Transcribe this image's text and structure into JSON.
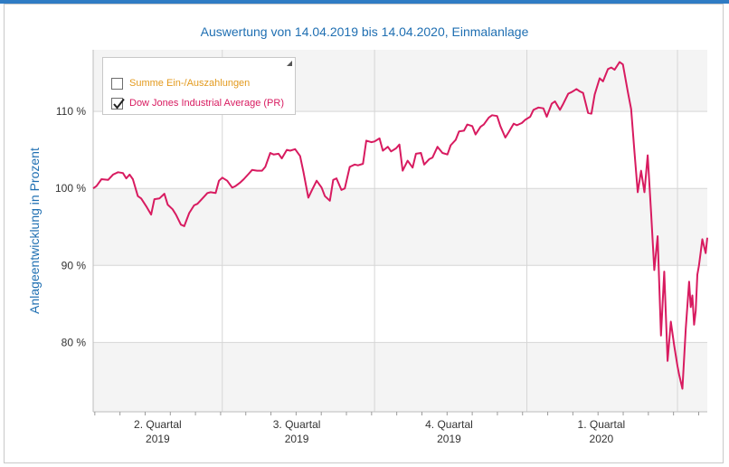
{
  "title": "Auswertung von 14.04.2019 bis 14.04.2020, Einmalanlage",
  "legend": {
    "items": [
      {
        "label": "Summe Ein-/Auszahlungen",
        "checked": false,
        "color": "#e39a1e"
      },
      {
        "label": "Dow Jones Industrial Average (PR)",
        "checked": true,
        "color": "#d81b60"
      }
    ]
  },
  "colors": {
    "title": "#1f6fb2",
    "series": "#d81b60",
    "band": "#f4f4f4",
    "grid": "#d6d6d6"
  },
  "chart_data": {
    "type": "line",
    "title": "Auswertung von 14.04.2019 bis 14.04.2020, Einmalanlage",
    "xlabel": "",
    "ylabel": "Anlageentwicklung  in Prozent",
    "y_unit": "%",
    "ylim": [
      71,
      118
    ],
    "yticks": [
      80,
      90,
      100,
      110
    ],
    "ytick_labels": [
      "80 %",
      "90 %",
      "100 %",
      "110 %"
    ],
    "xlim": [
      "2019-04-14",
      "2020-04-14"
    ],
    "x_quarter_boundaries": [
      "2019-07-01",
      "2019-10-01",
      "2020-01-01"
    ],
    "xticks": [
      {
        "line1": "2. Quartal",
        "line2": "2019",
        "center": "2019-05-23"
      },
      {
        "line1": "3. Quartal",
        "line2": "2019",
        "center": "2019-08-15"
      },
      {
        "line1": "4. Quartal",
        "line2": "2019",
        "center": "2019-11-15"
      },
      {
        "line1": "1. Quartal",
        "line2": "2020",
        "center": "2020-02-15"
      }
    ],
    "grid": true,
    "legend_position": "top-left",
    "series": [
      {
        "name": "Dow Jones Industrial Average (PR)",
        "color": "#d81b60",
        "points": [
          [
            "2019-04-14",
            100.0
          ],
          [
            "2019-04-16",
            100.3
          ],
          [
            "2019-04-19",
            101.2
          ],
          [
            "2019-04-23",
            101.1
          ],
          [
            "2019-04-26",
            101.8
          ],
          [
            "2019-04-29",
            102.1
          ],
          [
            "2019-05-02",
            102.0
          ],
          [
            "2019-05-04",
            101.3
          ],
          [
            "2019-05-06",
            101.8
          ],
          [
            "2019-05-08",
            101.2
          ],
          [
            "2019-05-11",
            99.0
          ],
          [
            "2019-05-13",
            98.7
          ],
          [
            "2019-05-16",
            97.7
          ],
          [
            "2019-05-19",
            96.6
          ],
          [
            "2019-05-21",
            98.6
          ],
          [
            "2019-05-24",
            98.7
          ],
          [
            "2019-05-27",
            99.3
          ],
          [
            "2019-05-29",
            97.9
          ],
          [
            "2019-06-01",
            97.3
          ],
          [
            "2019-06-03",
            96.6
          ],
          [
            "2019-06-06",
            95.3
          ],
          [
            "2019-06-08",
            95.1
          ],
          [
            "2019-06-11",
            96.8
          ],
          [
            "2019-06-14",
            97.8
          ],
          [
            "2019-06-16",
            98.0
          ],
          [
            "2019-06-19",
            98.7
          ],
          [
            "2019-06-22",
            99.4
          ],
          [
            "2019-06-24",
            99.5
          ],
          [
            "2019-06-27",
            99.4
          ],
          [
            "2019-06-29",
            101.0
          ],
          [
            "2019-07-01",
            101.4
          ],
          [
            "2019-07-04",
            101.0
          ],
          [
            "2019-07-07",
            100.1
          ],
          [
            "2019-07-09",
            100.3
          ],
          [
            "2019-07-12",
            100.8
          ],
          [
            "2019-07-14",
            101.2
          ],
          [
            "2019-07-17",
            101.9
          ],
          [
            "2019-07-19",
            102.4
          ],
          [
            "2019-07-22",
            102.3
          ],
          [
            "2019-07-25",
            102.3
          ],
          [
            "2019-07-27",
            102.8
          ],
          [
            "2019-07-30",
            104.6
          ],
          [
            "2019-08-01",
            104.4
          ],
          [
            "2019-08-04",
            104.5
          ],
          [
            "2019-08-06",
            103.9
          ],
          [
            "2019-08-09",
            105.0
          ],
          [
            "2019-08-11",
            104.9
          ],
          [
            "2019-08-14",
            105.1
          ],
          [
            "2019-08-17",
            104.2
          ],
          [
            "2019-08-19",
            102.2
          ],
          [
            "2019-08-22",
            98.8
          ],
          [
            "2019-08-24",
            99.7
          ],
          [
            "2019-08-27",
            101.0
          ],
          [
            "2019-08-30",
            100.1
          ],
          [
            "2019-09-01",
            99.0
          ],
          [
            "2019-09-04",
            98.4
          ],
          [
            "2019-09-06",
            101.1
          ],
          [
            "2019-09-08",
            101.3
          ],
          [
            "2019-09-11",
            99.8
          ],
          [
            "2019-09-13",
            100.0
          ],
          [
            "2019-09-16",
            102.8
          ],
          [
            "2019-09-19",
            103.1
          ],
          [
            "2019-09-21",
            103.0
          ],
          [
            "2019-09-24",
            103.2
          ],
          [
            "2019-09-26",
            106.2
          ],
          [
            "2019-09-29",
            106.0
          ],
          [
            "2019-10-01",
            106.1
          ],
          [
            "2019-10-04",
            106.5
          ],
          [
            "2019-10-06",
            104.9
          ],
          [
            "2019-10-09",
            105.4
          ],
          [
            "2019-10-11",
            104.8
          ],
          [
            "2019-10-14",
            105.2
          ],
          [
            "2019-10-16",
            105.7
          ],
          [
            "2019-10-18",
            102.3
          ],
          [
            "2019-10-21",
            103.6
          ],
          [
            "2019-10-24",
            102.7
          ],
          [
            "2019-10-26",
            104.5
          ],
          [
            "2019-10-29",
            104.6
          ],
          [
            "2019-10-31",
            103.1
          ],
          [
            "2019-11-03",
            103.8
          ],
          [
            "2019-11-05",
            104.0
          ],
          [
            "2019-11-08",
            105.4
          ],
          [
            "2019-11-11",
            104.6
          ],
          [
            "2019-11-14",
            104.4
          ],
          [
            "2019-11-16",
            105.6
          ],
          [
            "2019-11-19",
            106.3
          ],
          [
            "2019-11-21",
            107.4
          ],
          [
            "2019-11-24",
            107.5
          ],
          [
            "2019-11-26",
            108.3
          ],
          [
            "2019-11-29",
            108.1
          ],
          [
            "2019-12-01",
            107.0
          ],
          [
            "2019-12-04",
            108.0
          ],
          [
            "2019-12-06",
            108.3
          ],
          [
            "2019-12-09",
            109.2
          ],
          [
            "2019-12-11",
            109.5
          ],
          [
            "2019-12-14",
            109.4
          ],
          [
            "2019-12-16",
            108.1
          ],
          [
            "2019-12-19",
            106.6
          ],
          [
            "2019-12-21",
            107.3
          ],
          [
            "2019-12-24",
            108.4
          ],
          [
            "2019-12-26",
            108.2
          ],
          [
            "2019-12-29",
            108.5
          ],
          [
            "2019-12-31",
            108.9
          ],
          [
            "2020-01-03",
            109.3
          ],
          [
            "2020-01-05",
            110.2
          ],
          [
            "2020-01-08",
            110.5
          ],
          [
            "2020-01-11",
            110.4
          ],
          [
            "2020-01-13",
            109.3
          ],
          [
            "2020-01-16",
            111.0
          ],
          [
            "2020-01-18",
            111.3
          ],
          [
            "2020-01-21",
            110.2
          ],
          [
            "2020-01-23",
            111.0
          ],
          [
            "2020-01-26",
            112.3
          ],
          [
            "2020-01-28",
            112.5
          ],
          [
            "2020-01-31",
            112.9
          ],
          [
            "2020-02-02",
            112.6
          ],
          [
            "2020-02-04",
            112.4
          ],
          [
            "2020-02-07",
            109.8
          ],
          [
            "2020-02-09",
            109.7
          ],
          [
            "2020-02-11",
            112.2
          ],
          [
            "2020-02-14",
            114.3
          ],
          [
            "2020-02-16",
            113.9
          ],
          [
            "2020-02-19",
            115.5
          ],
          [
            "2020-02-21",
            115.7
          ],
          [
            "2020-02-23",
            115.4
          ],
          [
            "2020-02-26",
            116.4
          ],
          [
            "2020-02-28",
            116.1
          ],
          [
            "2020-03-02",
            112.5
          ],
          [
            "2020-03-04",
            110.3
          ],
          [
            "2020-03-06",
            104.7
          ],
          [
            "2020-03-08",
            99.5
          ],
          [
            "2020-03-10",
            102.3
          ],
          [
            "2020-03-12",
            99.5
          ],
          [
            "2020-03-14",
            104.3
          ],
          [
            "2020-03-16",
            97.0
          ],
          [
            "2020-03-18",
            89.4
          ],
          [
            "2020-03-20",
            93.8
          ],
          [
            "2020-03-22",
            80.9
          ],
          [
            "2020-03-24",
            89.2
          ],
          [
            "2020-03-26",
            77.6
          ],
          [
            "2020-03-28",
            82.7
          ],
          [
            "2020-03-30",
            79.6
          ],
          [
            "2020-04-01",
            76.9
          ],
          [
            "2020-04-02",
            75.8
          ],
          [
            "2020-04-04",
            74.0
          ],
          [
            "2020-04-06",
            81.8
          ],
          [
            "2020-04-08",
            87.9
          ],
          [
            "2020-04-09",
            84.6
          ],
          [
            "2020-04-10",
            86.1
          ],
          [
            "2020-04-11",
            82.3
          ],
          [
            "2020-04-12",
            84.1
          ],
          [
            "2020-04-13",
            88.8
          ],
          [
            "2020-04-14",
            90.0
          ],
          [
            "2020-04-15",
            91.7
          ],
          [
            "2020-04-16",
            93.4
          ],
          [
            "2020-04-18",
            91.6
          ],
          [
            "2020-04-19",
            93.6
          ]
        ]
      }
    ]
  }
}
